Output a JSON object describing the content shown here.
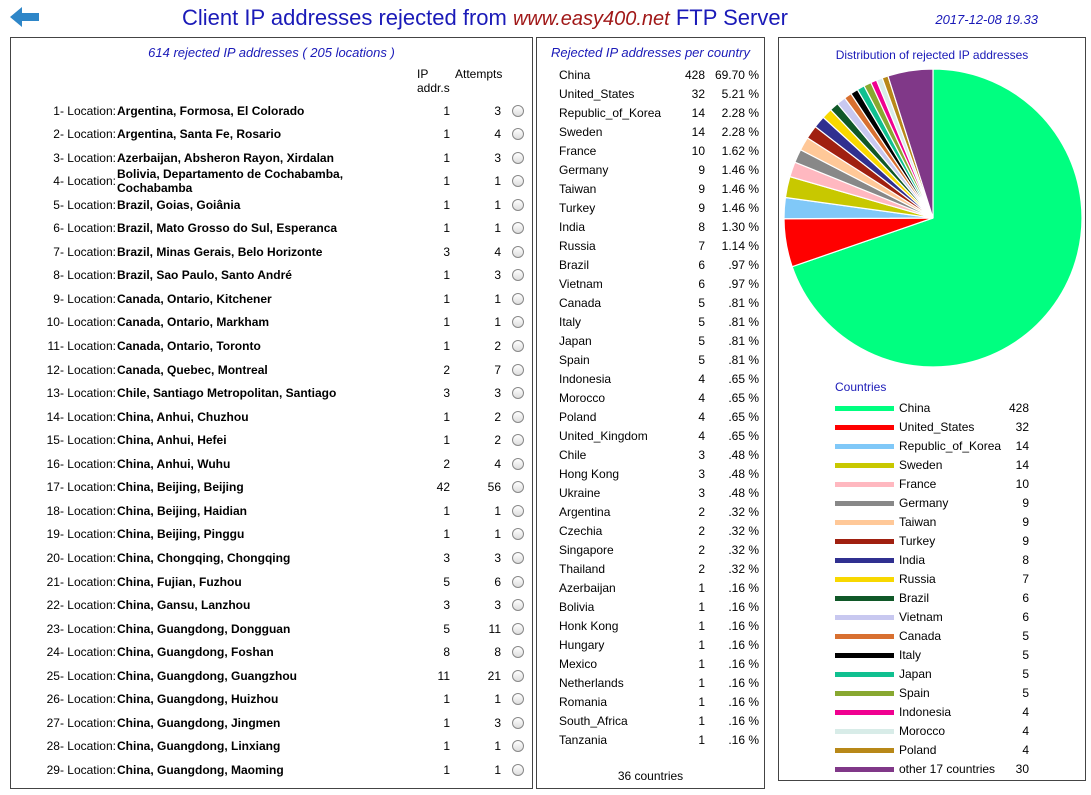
{
  "header": {
    "title_prefix": "Client IP addresses rejected from ",
    "title_site": "www.easy400.net",
    "title_suffix": " FTP Server",
    "timestamp": "2017-12-08 19.33"
  },
  "locations_panel": {
    "summary": "614 rejected IP addresses ( 205 locations )",
    "col_ip_line1": "IP",
    "col_ip_line2": "addr.s",
    "col_attempts": "Attempts",
    "rows": [
      {
        "num": "1- Location:",
        "name": "Argentina, Formosa, El Colorado",
        "ip": "1",
        "attempts": "3"
      },
      {
        "num": "2- Location:",
        "name": "Argentina, Santa Fe, Rosario",
        "ip": "1",
        "attempts": "4"
      },
      {
        "num": "3- Location:",
        "name": "Azerbaijan, Absheron Rayon, Xirdalan",
        "ip": "1",
        "attempts": "3"
      },
      {
        "num": "4- Location:",
        "name": "Bolivia, Departamento de Cochabamba, Cochabamba",
        "ip": "1",
        "attempts": "1"
      },
      {
        "num": "5- Location:",
        "name": "Brazil, Goias, Goiânia",
        "ip": "1",
        "attempts": "1"
      },
      {
        "num": "6- Location:",
        "name": "Brazil, Mato Grosso do Sul, Esperanca",
        "ip": "1",
        "attempts": "1"
      },
      {
        "num": "7- Location:",
        "name": "Brazil, Minas Gerais, Belo Horizonte",
        "ip": "3",
        "attempts": "4"
      },
      {
        "num": "8- Location:",
        "name": "Brazil, Sao Paulo, Santo André",
        "ip": "1",
        "attempts": "3"
      },
      {
        "num": "9- Location:",
        "name": "Canada, Ontario, Kitchener",
        "ip": "1",
        "attempts": "1"
      },
      {
        "num": "10- Location:",
        "name": "Canada, Ontario, Markham",
        "ip": "1",
        "attempts": "1"
      },
      {
        "num": "11- Location:",
        "name": "Canada, Ontario, Toronto",
        "ip": "1",
        "attempts": "2"
      },
      {
        "num": "12- Location:",
        "name": "Canada, Quebec, Montreal",
        "ip": "2",
        "attempts": "7"
      },
      {
        "num": "13- Location:",
        "name": "Chile, Santiago Metropolitan, Santiago",
        "ip": "3",
        "attempts": "3"
      },
      {
        "num": "14- Location:",
        "name": "China, Anhui, Chuzhou",
        "ip": "1",
        "attempts": "2"
      },
      {
        "num": "15- Location:",
        "name": "China, Anhui, Hefei",
        "ip": "1",
        "attempts": "2"
      },
      {
        "num": "16- Location:",
        "name": "China, Anhui, Wuhu",
        "ip": "2",
        "attempts": "4"
      },
      {
        "num": "17- Location:",
        "name": "China, Beijing, Beijing",
        "ip": "42",
        "attempts": "56"
      },
      {
        "num": "18- Location:",
        "name": "China, Beijing, Haidian",
        "ip": "1",
        "attempts": "1"
      },
      {
        "num": "19- Location:",
        "name": "China, Beijing, Pinggu",
        "ip": "1",
        "attempts": "1"
      },
      {
        "num": "20- Location:",
        "name": "China, Chongqing, Chongqing",
        "ip": "3",
        "attempts": "3"
      },
      {
        "num": "21- Location:",
        "name": "China, Fujian, Fuzhou",
        "ip": "5",
        "attempts": "6"
      },
      {
        "num": "22- Location:",
        "name": "China, Gansu, Lanzhou",
        "ip": "3",
        "attempts": "3"
      },
      {
        "num": "23- Location:",
        "name": "China, Guangdong, Dongguan",
        "ip": "5",
        "attempts": "11"
      },
      {
        "num": "24- Location:",
        "name": "China, Guangdong, Foshan",
        "ip": "8",
        "attempts": "8"
      },
      {
        "num": "25- Location:",
        "name": "China, Guangdong, Guangzhou",
        "ip": "11",
        "attempts": "21"
      },
      {
        "num": "26- Location:",
        "name": "China, Guangdong, Huizhou",
        "ip": "1",
        "attempts": "1"
      },
      {
        "num": "27- Location:",
        "name": "China, Guangdong, Jingmen",
        "ip": "1",
        "attempts": "3"
      },
      {
        "num": "28- Location:",
        "name": "China, Guangdong, Linxiang",
        "ip": "1",
        "attempts": "1"
      },
      {
        "num": "29- Location:",
        "name": "China, Guangdong, Maoming",
        "ip": "1",
        "attempts": "1"
      }
    ]
  },
  "country_panel": {
    "title": "Rejected IP addresses per country",
    "footer": "36 countries",
    "rows": [
      {
        "name": "China",
        "count": "428",
        "pct": "69.70 %"
      },
      {
        "name": "United_States",
        "count": "32",
        "pct": "5.21 %"
      },
      {
        "name": "Republic_of_Korea",
        "count": "14",
        "pct": "2.28 %"
      },
      {
        "name": "Sweden",
        "count": "14",
        "pct": "2.28 %"
      },
      {
        "name": "France",
        "count": "10",
        "pct": "1.62 %"
      },
      {
        "name": "Germany",
        "count": "9",
        "pct": "1.46 %"
      },
      {
        "name": "Taiwan",
        "count": "9",
        "pct": "1.46 %"
      },
      {
        "name": "Turkey",
        "count": "9",
        "pct": "1.46 %"
      },
      {
        "name": "India",
        "count": "8",
        "pct": "1.30 %"
      },
      {
        "name": "Russia",
        "count": "7",
        "pct": "1.14 %"
      },
      {
        "name": "Brazil",
        "count": "6",
        "pct": ".97 %"
      },
      {
        "name": "Vietnam",
        "count": "6",
        "pct": ".97 %"
      },
      {
        "name": "Canada",
        "count": "5",
        "pct": ".81 %"
      },
      {
        "name": "Italy",
        "count": "5",
        "pct": ".81 %"
      },
      {
        "name": "Japan",
        "count": "5",
        "pct": ".81 %"
      },
      {
        "name": "Spain",
        "count": "5",
        "pct": ".81 %"
      },
      {
        "name": "Indonesia",
        "count": "4",
        "pct": ".65 %"
      },
      {
        "name": "Morocco",
        "count": "4",
        "pct": ".65 %"
      },
      {
        "name": "Poland",
        "count": "4",
        "pct": ".65 %"
      },
      {
        "name": "United_Kingdom",
        "count": "4",
        "pct": ".65 %"
      },
      {
        "name": "Chile",
        "count": "3",
        "pct": ".48 %"
      },
      {
        "name": "Hong Kong",
        "count": "3",
        "pct": ".48 %"
      },
      {
        "name": "Ukraine",
        "count": "3",
        "pct": ".48 %"
      },
      {
        "name": "Argentina",
        "count": "2",
        "pct": ".32 %"
      },
      {
        "name": "Czechia",
        "count": "2",
        "pct": ".32 %"
      },
      {
        "name": "Singapore",
        "count": "2",
        "pct": ".32 %"
      },
      {
        "name": "Thailand",
        "count": "2",
        "pct": ".32 %"
      },
      {
        "name": "Azerbaijan",
        "count": "1",
        "pct": ".16 %"
      },
      {
        "name": "Bolivia",
        "count": "1",
        "pct": ".16 %"
      },
      {
        "name": "Honk Kong",
        "count": "1",
        "pct": ".16 %"
      },
      {
        "name": "Hungary",
        "count": "1",
        "pct": ".16 %"
      },
      {
        "name": "Mexico",
        "count": "1",
        "pct": ".16 %"
      },
      {
        "name": "Netherlands",
        "count": "1",
        "pct": ".16 %"
      },
      {
        "name": "Romania",
        "count": "1",
        "pct": ".16 %"
      },
      {
        "name": "South_Africa",
        "count": "1",
        "pct": ".16 %"
      },
      {
        "name": "Tanzania",
        "count": "1",
        "pct": ".16 %"
      }
    ]
  },
  "chart_data": {
    "type": "pie",
    "title": "Distribution of rejected IP addresses",
    "legend_title": "Countries",
    "legend_placement": "bottom",
    "categories": [
      "China",
      "United_States",
      "Republic_of_Korea",
      "Sweden",
      "France",
      "Germany",
      "Taiwan",
      "Turkey",
      "India",
      "Russia",
      "Brazil",
      "Vietnam",
      "Canada",
      "Italy",
      "Japan",
      "Spain",
      "Indonesia",
      "Morocco",
      "Poland",
      "other 17 countries"
    ],
    "values": [
      428,
      32,
      14,
      14,
      10,
      9,
      9,
      9,
      8,
      7,
      6,
      6,
      5,
      5,
      5,
      5,
      4,
      4,
      4,
      30
    ],
    "colors": [
      "#00ff80",
      "#ff0000",
      "#80c8f8",
      "#c8c800",
      "#ffb8c0",
      "#888888",
      "#ffc898",
      "#a02010",
      "#303090",
      "#f8d800",
      "#105828",
      "#c8c8f0",
      "#d87030",
      "#000000",
      "#10c090",
      "#88a830",
      "#f00090",
      "#d8ece8",
      "#b88818",
      "#803888"
    ]
  }
}
